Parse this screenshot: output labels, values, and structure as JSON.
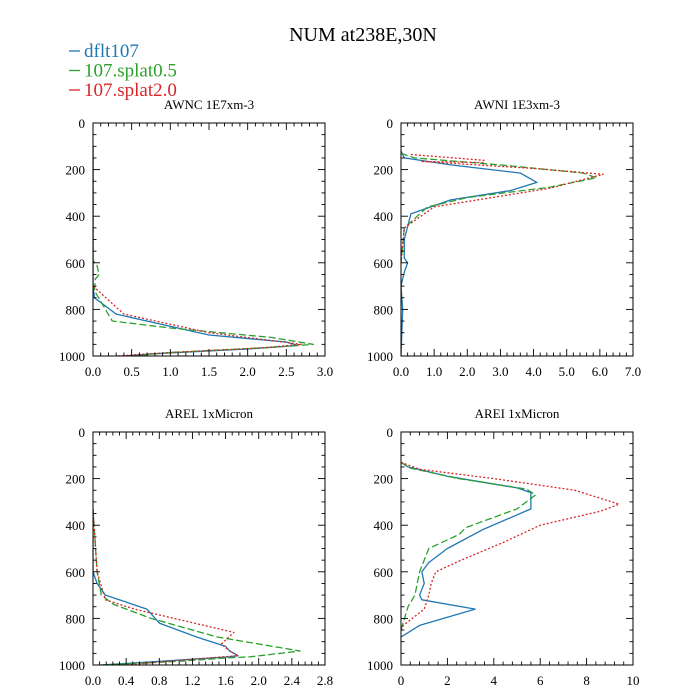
{
  "figure": {
    "title": "NUM at238E,30N",
    "legend_position": "top-left",
    "legend": [
      {
        "name": "dflt107",
        "color": "#1f77b4",
        "dash": "solid"
      },
      {
        "name": "107.splat0.5",
        "color": "#2ca02c",
        "dash": "dashed"
      },
      {
        "name": "107.splat2.0",
        "color": "#d62728",
        "dash": "dotted"
      }
    ]
  },
  "chart_data": [
    {
      "type": "line",
      "title": "AWNC  1E7xm-3",
      "xlim": [
        0,
        3.0
      ],
      "ylim": [
        0,
        1000
      ],
      "y_inverted": true,
      "xticks": [
        0.0,
        0.5,
        1.0,
        1.5,
        2.0,
        2.5,
        3.0
      ],
      "xtick_labels": [
        "0.0",
        "0.5",
        "1.0",
        "1.5",
        "2.0",
        "2.5",
        "3.0"
      ],
      "yticks": [
        0,
        200,
        400,
        600,
        800,
        1000
      ],
      "ytick_labels": [
        "0",
        "200",
        "400",
        "600",
        "800",
        "1000"
      ],
      "series": [
        {
          "name": "dflt107",
          "color": "#1f77b4",
          "dash": "solid",
          "x": [
            0,
            0,
            0.02,
            0.3,
            1.5,
            2.5,
            2.65,
            2.0,
            0.8,
            0.4
          ],
          "y": [
            100,
            700,
            750,
            820,
            910,
            940,
            955,
            970,
            990,
            1000
          ]
        },
        {
          "name": "107.splat0.5",
          "color": "#2ca02c",
          "dash": "dashed",
          "x": [
            0,
            0,
            0.05,
            0.08,
            0.03,
            0.02,
            0.25,
            1.0,
            2.3,
            2.85,
            2.2,
            1.0,
            0.5
          ],
          "y": [
            100,
            590,
            610,
            650,
            670,
            720,
            850,
            880,
            920,
            950,
            965,
            985,
            1000
          ]
        },
        {
          "name": "107.splat2.0",
          "color": "#d62728",
          "dash": "dotted",
          "x": [
            0,
            0,
            0.4,
            1.5,
            2.7,
            2.2,
            1.0,
            0.3
          ],
          "y": [
            100,
            700,
            820,
            900,
            950,
            965,
            985,
            1000
          ]
        }
      ]
    },
    {
      "type": "line",
      "title": "AWNI  1E3xm-3",
      "xlim": [
        0,
        7.0
      ],
      "ylim": [
        0,
        1000
      ],
      "y_inverted": true,
      "xticks": [
        0.0,
        1.0,
        2.0,
        3.0,
        4.0,
        5.0,
        6.0,
        7.0
      ],
      "xtick_labels": [
        "0.0",
        "1.0",
        "2.0",
        "3.0",
        "4.0",
        "5.0",
        "6.0",
        "7.0"
      ],
      "yticks": [
        0,
        200,
        400,
        600,
        800,
        1000
      ],
      "ytick_labels": [
        "0",
        "200",
        "400",
        "600",
        "800",
        "1000"
      ],
      "series": [
        {
          "name": "dflt107",
          "color": "#1f77b4",
          "dash": "solid",
          "x": [
            0,
            0.1,
            1.5,
            3.6,
            4.1,
            3.3,
            1.5,
            0.3,
            0.1,
            0.1,
            0.2,
            0.1,
            0,
            0.05,
            0
          ],
          "y": [
            120,
            150,
            180,
            215,
            255,
            290,
            330,
            390,
            500,
            580,
            600,
            640,
            700,
            800,
            1000
          ]
        },
        {
          "name": "107.splat0.5",
          "color": "#2ca02c",
          "dash": "dashed",
          "x": [
            0,
            0.4,
            3.0,
            5.5,
            5.9,
            4.5,
            2.0,
            0.8,
            0.1,
            0
          ],
          "y": [
            130,
            150,
            180,
            215,
            235,
            275,
            320,
            360,
            450,
            600
          ]
        },
        {
          "name": "107.splat2.0",
          "color": "#d62728",
          "dash": "dotted",
          "x": [
            0.3,
            2.5,
            2.5,
            0.6,
            4.0,
            6.1,
            4.5,
            1.0,
            0.1,
            0
          ],
          "y": [
            135,
            160,
            170,
            165,
            195,
            220,
            280,
            360,
            450,
            600
          ]
        }
      ]
    },
    {
      "type": "line",
      "title": "AREL  1xMicron",
      "xlim": [
        0,
        2.8
      ],
      "ylim": [
        0,
        1000
      ],
      "y_inverted": true,
      "xticks": [
        0.0,
        0.4,
        0.8,
        1.2,
        1.6,
        2.0,
        2.4,
        2.8
      ],
      "xtick_labels": [
        "0.0",
        "0.4",
        "0.8",
        "1.2",
        "1.6",
        "2.0",
        "2.4",
        "2.8"
      ],
      "yticks": [
        0,
        200,
        400,
        600,
        800,
        1000
      ],
      "ytick_labels": [
        "0",
        "200",
        "400",
        "600",
        "800",
        "1000"
      ],
      "series": [
        {
          "name": "dflt107",
          "color": "#1f77b4",
          "dash": "solid",
          "x": [
            0,
            0,
            0.05,
            0.15,
            0.65,
            0.8,
            1.25,
            1.6,
            1.65,
            1.75,
            1.65,
            1.0,
            0.1
          ],
          "y": [
            330,
            600,
            650,
            700,
            760,
            820,
            880,
            920,
            940,
            960,
            965,
            980,
            1000
          ]
        },
        {
          "name": "107.splat0.5",
          "color": "#2ca02c",
          "dash": "dashed",
          "x": [
            0,
            0.05,
            0.1,
            0.25,
            0.7,
            1.5,
            2.5,
            1.9,
            1.6,
            1.0,
            0.1
          ],
          "y": [
            330,
            600,
            700,
            740,
            800,
            880,
            940,
            965,
            970,
            985,
            1000
          ]
        },
        {
          "name": "107.splat2.0",
          "color": "#d62728",
          "dash": "dotted",
          "x": [
            0,
            0.05,
            0.15,
            0.5,
            1.7,
            1.55,
            1.65,
            1.75,
            1.2,
            0.4
          ],
          "y": [
            330,
            600,
            720,
            760,
            860,
            910,
            940,
            960,
            975,
            1000
          ]
        }
      ]
    },
    {
      "type": "line",
      "title": "AREI  1xMicron",
      "xlim": [
        0,
        10
      ],
      "ylim": [
        0,
        1000
      ],
      "y_inverted": true,
      "xticks": [
        0,
        2,
        4,
        6,
        8,
        10
      ],
      "xtick_labels": [
        "0",
        "2",
        "4",
        "6",
        "8",
        "10"
      ],
      "yticks": [
        0,
        200,
        400,
        600,
        800,
        1000
      ],
      "ytick_labels": [
        "0",
        "200",
        "400",
        "600",
        "800",
        "1000"
      ],
      "series": [
        {
          "name": "dflt107",
          "color": "#1f77b4",
          "dash": "solid",
          "x": [
            0,
            0.3,
            2.0,
            5.0,
            5.6,
            5.6,
            3.5,
            2.0,
            1.2,
            0.9,
            1.0,
            0.8,
            0.9,
            3.2,
            0.8,
            0
          ],
          "y": [
            130,
            150,
            190,
            240,
            260,
            330,
            420,
            500,
            560,
            600,
            650,
            700,
            720,
            760,
            830,
            880
          ]
        },
        {
          "name": "107.splat0.5",
          "color": "#2ca02c",
          "dash": "dashed",
          "x": [
            0,
            0.4,
            2.5,
            5.4,
            5.8,
            5.0,
            2.8,
            2.5,
            1.2,
            0.8,
            0.6,
            0.3,
            0
          ],
          "y": [
            130,
            155,
            200,
            245,
            270,
            330,
            410,
            440,
            500,
            600,
            700,
            750,
            850
          ]
        },
        {
          "name": "107.splat2.0",
          "color": "#d62728",
          "dash": "dotted",
          "x": [
            0,
            0.8,
            4.0,
            7.5,
            9.4,
            8.6,
            6.0,
            4.5,
            2.6,
            1.5,
            1.3,
            1.2,
            1.0,
            0.1,
            0
          ],
          "y": [
            130,
            160,
            200,
            250,
            310,
            340,
            400,
            470,
            550,
            600,
            650,
            700,
            760,
            830,
            850
          ]
        }
      ]
    }
  ]
}
